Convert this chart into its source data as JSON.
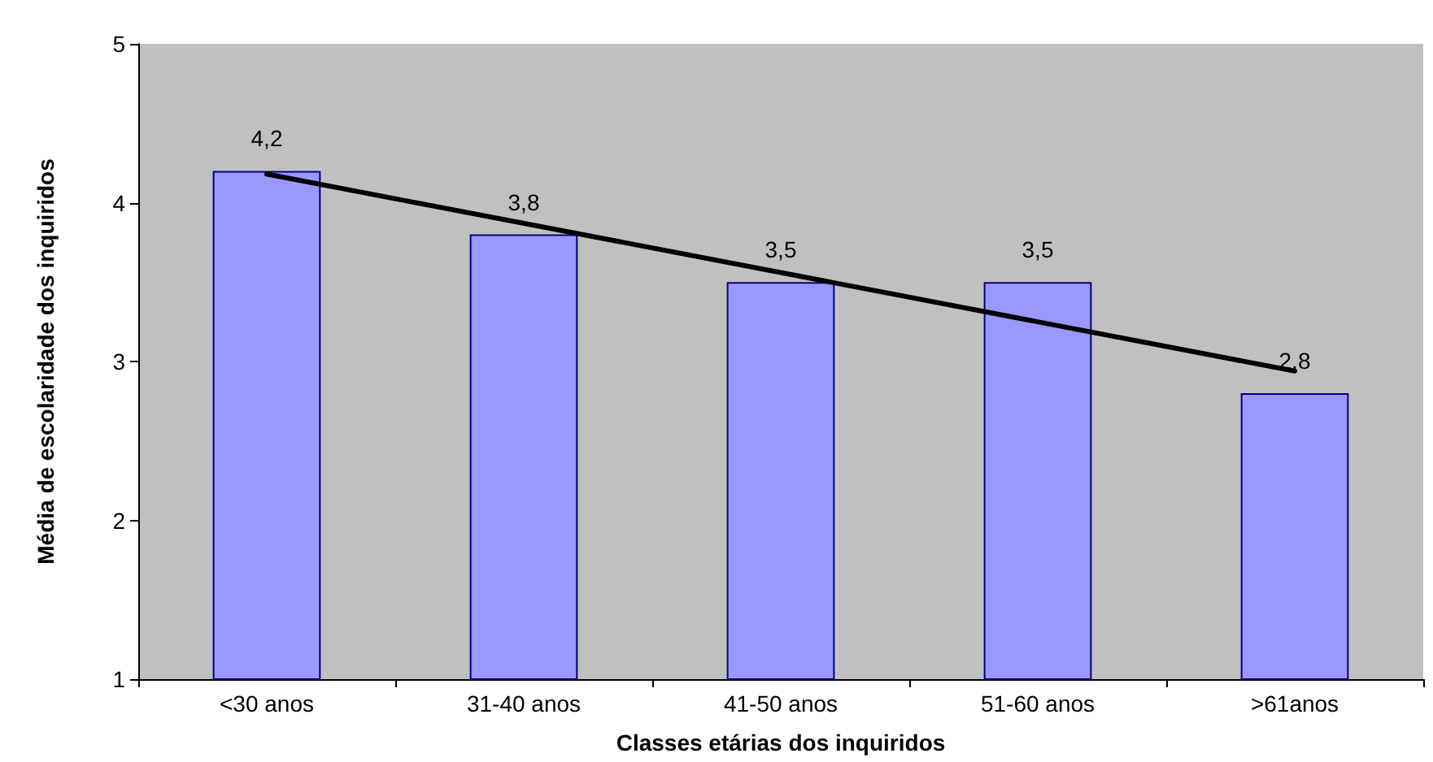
{
  "chart_data": {
    "type": "bar",
    "xlabel": "Classes etárias dos inquiridos",
    "ylabel": "Média de escolaridade dos inquiridos",
    "categories": [
      "<30 anos",
      "31-40 anos",
      "41-50 anos",
      "51-60 anos",
      ">61anos"
    ],
    "series": [
      {
        "color": "#9999ff",
        "values": [
          4.2,
          3.8,
          3.5,
          3.5,
          2.8
        ],
        "value_labels": [
          "4,2",
          "3,8",
          "3,5",
          "3,5",
          "2,8"
        ]
      },
      {
        "type": "line",
        "color": "#000000",
        "x": [
          "<30 anos",
          ">61anos"
        ],
        "values": [
          4.18,
          2.94
        ]
      }
    ],
    "ylim": [
      1,
      5
    ],
    "yticks": [
      1,
      2,
      3,
      4,
      5
    ],
    "grid": false,
    "marker": "none",
    "line_style": "solid"
  }
}
